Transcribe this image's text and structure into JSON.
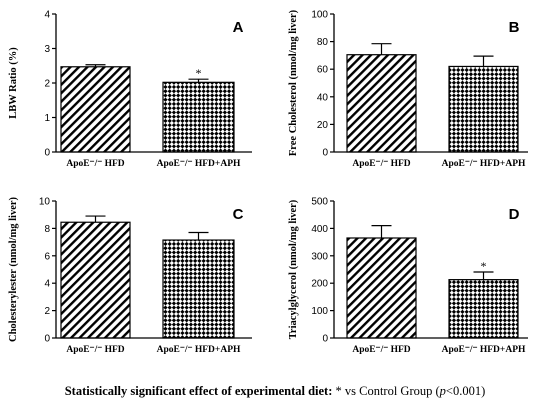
{
  "chart_data": [
    {
      "type": "bar",
      "panel_label": "A",
      "ylabel": "LBW Ratio (%)",
      "xlabel": "",
      "categories": [
        "ApoE⁻/⁻ HFD",
        "ApoE⁻/⁻ HFD+APH"
      ],
      "values": [
        2.47,
        2.02
      ],
      "errors": [
        0.06,
        0.09
      ],
      "significance": [
        "",
        "*"
      ],
      "patterns": [
        "hatch",
        "check"
      ],
      "ylim": [
        0,
        4
      ],
      "yticks": [
        0,
        1,
        2,
        3,
        4
      ]
    },
    {
      "type": "bar",
      "panel_label": "B",
      "ylabel": "Free Cholesterol (nmol/mg liver)",
      "xlabel": "",
      "categories": [
        "ApoE⁻/⁻ HFD",
        "ApoE⁻/⁻ HFD+APH"
      ],
      "values": [
        70.5,
        62.0
      ],
      "errors": [
        8.0,
        7.5
      ],
      "significance": [
        "",
        ""
      ],
      "patterns": [
        "hatch",
        "check"
      ],
      "ylim": [
        0,
        100
      ],
      "yticks": [
        0,
        20,
        40,
        60,
        80,
        100
      ]
    },
    {
      "type": "bar",
      "panel_label": "C",
      "ylabel": "Cholesterylester (nmol/mg liver)",
      "xlabel": "",
      "categories": [
        "ApoE⁻/⁻ HFD",
        "ApoE⁻/⁻ HFD+APH"
      ],
      "values": [
        8.45,
        7.15
      ],
      "errors": [
        0.45,
        0.55
      ],
      "significance": [
        "",
        ""
      ],
      "patterns": [
        "hatch",
        "check"
      ],
      "ylim": [
        0,
        10
      ],
      "yticks": [
        0,
        2,
        4,
        6,
        8,
        10
      ]
    },
    {
      "type": "bar",
      "panel_label": "D",
      "ylabel": "Triacylglycerol (nmol/mg liver)",
      "xlabel": "",
      "categories": [
        "ApoE⁻/⁻ HFD",
        "ApoE⁻/⁻ HFD+APH"
      ],
      "values": [
        365,
        213
      ],
      "errors": [
        45,
        28
      ],
      "significance": [
        "",
        "*"
      ],
      "patterns": [
        "hatch",
        "check"
      ],
      "ylim": [
        0,
        500
      ],
      "yticks": [
        0,
        100,
        200,
        300,
        400,
        500
      ]
    }
  ],
  "caption": {
    "bold_part": "Statistically significant effect of experimental diet:",
    "star": " * vs Control Group (",
    "p_italic": "p",
    "tail": "<0.001)"
  }
}
